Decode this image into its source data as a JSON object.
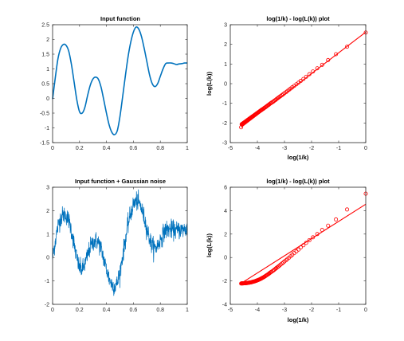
{
  "colors": {
    "series_blue": "#0072BD",
    "fit_red": "#FF0000",
    "axis": "#262626"
  },
  "chart_data": [
    {
      "type": "line",
      "title": "Input function",
      "xlabel": "",
      "ylabel": "",
      "xlim": [
        0,
        1
      ],
      "ylim": [
        -1.5,
        2.5
      ],
      "xticks": [
        0,
        0.2,
        0.4,
        0.6,
        0.8,
        1
      ],
      "yticks": [
        -1.5,
        -1,
        -0.5,
        0,
        0.5,
        1,
        1.5,
        2,
        2.5
      ],
      "xtick_labels": [
        "0",
        "0.2",
        "0.4",
        "0.6",
        "0.8",
        "1"
      ],
      "ytick_labels": [
        "-1.5",
        "-1",
        "-0.5",
        "0",
        "0.5",
        "1",
        "1.5",
        "2",
        "2.5"
      ],
      "grid": false,
      "series": [
        {
          "color": "#0072BD",
          "x": [
            0,
            0.02,
            0.04,
            0.06,
            0.08,
            0.1,
            0.12,
            0.14,
            0.16,
            0.18,
            0.2,
            0.22,
            0.24,
            0.26,
            0.28,
            0.3,
            0.32,
            0.34,
            0.36,
            0.38,
            0.4,
            0.42,
            0.44,
            0.46,
            0.48,
            0.5,
            0.52,
            0.54,
            0.56,
            0.58,
            0.6,
            0.62,
            0.64,
            0.66,
            0.68,
            0.7,
            0.72,
            0.74,
            0.76,
            0.78,
            0.8,
            0.82,
            0.84,
            0.86,
            0.88,
            0.9,
            0.92,
            0.94,
            0.96,
            0.98,
            1
          ],
          "y": [
            -0.02,
            0.7,
            1.35,
            1.7,
            1.83,
            1.8,
            1.6,
            1.15,
            0.55,
            -0.05,
            -0.45,
            -0.5,
            -0.3,
            0.1,
            0.45,
            0.66,
            0.72,
            0.65,
            0.38,
            -0.05,
            -0.5,
            -0.9,
            -1.15,
            -1.23,
            -1.1,
            -0.62,
            0.05,
            0.75,
            1.4,
            1.9,
            2.25,
            2.42,
            2.35,
            2.1,
            1.7,
            1.25,
            0.8,
            0.5,
            0.4,
            0.5,
            0.75,
            1.0,
            1.18,
            1.2,
            1.2,
            1.18,
            1.15,
            1.17,
            1.18,
            1.2,
            1.2
          ]
        }
      ]
    },
    {
      "type": "scatter",
      "title": "log(1/k) - log(L(k)) plot",
      "xlabel": "log(1/k)",
      "ylabel": "log(L(k))",
      "xlim": [
        -5,
        0
      ],
      "ylim": [
        -3,
        3
      ],
      "xticks": [
        -5,
        -4,
        -3,
        -2,
        -1,
        0
      ],
      "yticks": [
        -3,
        -2,
        -1,
        0,
        1,
        2,
        3
      ],
      "xtick_labels": [
        "-5",
        "-4",
        "-3",
        "-2",
        "-1",
        "0"
      ],
      "ytick_labels": [
        "-3",
        "-2",
        "-1",
        "0",
        "1",
        "2",
        "3"
      ],
      "grid": false,
      "fit_line": {
        "color": "#FF0000",
        "x": [
          -4.6,
          0
        ],
        "y": [
          -2.22,
          2.62
        ]
      },
      "series": [
        {
          "color": "#FF0000",
          "marker": "o",
          "x": [
            0,
            -0.69,
            -1.1,
            -1.39,
            -1.61,
            -1.79,
            -1.95,
            -2.08,
            -2.2,
            -2.3,
            -2.4,
            -2.48,
            -2.56,
            -2.64,
            -2.71,
            -2.77,
            -2.83,
            -2.89,
            -2.94,
            -3.0,
            -3.04,
            -3.09,
            -3.14,
            -3.18,
            -3.22,
            -3.26,
            -3.3,
            -3.33,
            -3.37,
            -3.4,
            -3.43,
            -3.47,
            -3.5,
            -3.53,
            -3.56,
            -3.58,
            -3.61,
            -3.64,
            -3.66,
            -3.69,
            -3.71,
            -3.74,
            -3.76,
            -3.78,
            -3.81,
            -3.83,
            -3.85,
            -3.87,
            -3.89,
            -3.91,
            -3.93,
            -3.95,
            -3.97,
            -3.99,
            -4.01,
            -4.03,
            -4.04,
            -4.06,
            -4.08,
            -4.09,
            -4.11,
            -4.13,
            -4.14,
            -4.16,
            -4.17,
            -4.19,
            -4.2,
            -4.22,
            -4.23,
            -4.25,
            -4.26,
            -4.28,
            -4.29,
            -4.3,
            -4.32,
            -4.33,
            -4.34,
            -4.36,
            -4.37,
            -4.38,
            -4.39,
            -4.41,
            -4.42,
            -4.43,
            -4.44,
            -4.45,
            -4.47,
            -4.48,
            -4.49,
            -4.5,
            -4.51,
            -4.52,
            -4.53,
            -4.54,
            -4.55,
            -4.56,
            -4.57,
            -4.58,
            -4.6
          ],
          "y": [
            2.6,
            1.88,
            1.5,
            1.2,
            0.96,
            0.78,
            0.62,
            0.48,
            0.35,
            0.24,
            0.14,
            0.05,
            -0.03,
            -0.11,
            -0.18,
            -0.25,
            -0.31,
            -0.37,
            -0.43,
            -0.48,
            -0.53,
            -0.58,
            -0.63,
            -0.67,
            -0.71,
            -0.75,
            -0.79,
            -0.83,
            -0.86,
            -0.9,
            -0.93,
            -0.96,
            -0.99,
            -1.02,
            -1.05,
            -1.08,
            -1.1,
            -1.13,
            -1.16,
            -1.18,
            -1.21,
            -1.23,
            -1.25,
            -1.28,
            -1.3,
            -1.32,
            -1.34,
            -1.36,
            -1.38,
            -1.4,
            -1.42,
            -1.44,
            -1.46,
            -1.48,
            -1.5,
            -1.52,
            -1.53,
            -1.55,
            -1.57,
            -1.58,
            -1.6,
            -1.62,
            -1.63,
            -1.65,
            -1.66,
            -1.68,
            -1.69,
            -1.71,
            -1.72,
            -1.74,
            -1.75,
            -1.77,
            -1.78,
            -1.79,
            -1.81,
            -1.82,
            -1.83,
            -1.85,
            -1.86,
            -1.87,
            -1.88,
            -1.9,
            -1.91,
            -1.92,
            -1.93,
            -1.94,
            -1.96,
            -1.97,
            -1.98,
            -1.99,
            -2.0,
            -2.01,
            -2.02,
            -2.03,
            -2.04,
            -2.05,
            -2.06,
            -2.07,
            -2.22
          ]
        }
      ]
    },
    {
      "type": "line",
      "title": "Input function + Gaussian noise",
      "xlabel": "",
      "ylabel": "",
      "xlim": [
        0,
        1
      ],
      "ylim": [
        -2,
        3
      ],
      "xticks": [
        0,
        0.2,
        0.4,
        0.6,
        0.8,
        1
      ],
      "yticks": [
        -2,
        -1,
        0,
        1,
        2,
        3
      ],
      "xtick_labels": [
        "0",
        "0.2",
        "0.4",
        "0.6",
        "0.8",
        "1"
      ],
      "ytick_labels": [
        "-2",
        "-1",
        "0",
        "1",
        "2",
        "3"
      ],
      "grid": false,
      "series": [
        {
          "color": "#0072BD",
          "noise_amplitude": 0.35,
          "x": [
            0,
            0.02,
            0.04,
            0.06,
            0.08,
            0.1,
            0.12,
            0.14,
            0.16,
            0.18,
            0.2,
            0.22,
            0.24,
            0.26,
            0.28,
            0.3,
            0.32,
            0.34,
            0.36,
            0.38,
            0.4,
            0.42,
            0.44,
            0.46,
            0.48,
            0.5,
            0.52,
            0.54,
            0.56,
            0.58,
            0.6,
            0.62,
            0.64,
            0.66,
            0.68,
            0.7,
            0.72,
            0.74,
            0.76,
            0.78,
            0.8,
            0.82,
            0.84,
            0.86,
            0.88,
            0.9,
            0.92,
            0.94,
            0.96,
            0.98,
            1
          ],
          "y": [
            -0.02,
            0.7,
            1.35,
            1.7,
            1.83,
            1.8,
            1.6,
            1.15,
            0.55,
            -0.05,
            -0.45,
            -0.5,
            -0.3,
            0.1,
            0.45,
            0.66,
            0.72,
            0.65,
            0.38,
            -0.05,
            -0.5,
            -0.9,
            -1.15,
            -1.23,
            -1.1,
            -0.62,
            0.05,
            0.75,
            1.4,
            1.9,
            2.25,
            2.42,
            2.35,
            2.1,
            1.7,
            1.25,
            0.8,
            0.5,
            0.4,
            0.5,
            0.75,
            1.0,
            1.18,
            1.2,
            1.2,
            1.18,
            1.15,
            1.17,
            1.18,
            1.2,
            1.2
          ]
        }
      ]
    },
    {
      "type": "scatter",
      "title": "log(1/k) - log(L(k)) plot",
      "xlabel": "log(1/k)",
      "ylabel": "log(L(k))",
      "xlim": [
        -5,
        0
      ],
      "ylim": [
        -4,
        6
      ],
      "xticks": [
        -5,
        -4,
        -3,
        -2,
        -1,
        0
      ],
      "yticks": [
        -4,
        -2,
        0,
        2,
        4,
        6
      ],
      "xtick_labels": [
        "-5",
        "-4",
        "-3",
        "-2",
        "-1",
        "0"
      ],
      "ytick_labels": [
        "-4",
        "-2",
        "0",
        "2",
        "4",
        "6"
      ],
      "grid": false,
      "fit_line": {
        "color": "#FF0000",
        "x": [
          -4.6,
          0
        ],
        "y": [
          -2.2,
          4.55
        ]
      },
      "series": [
        {
          "color": "#FF0000",
          "marker": "o",
          "x": [
            0,
            -0.69,
            -1.1,
            -1.39,
            -1.61,
            -1.79,
            -1.95,
            -2.08,
            -2.2,
            -2.3,
            -2.4,
            -2.48,
            -2.56,
            -2.64,
            -2.71,
            -2.77,
            -2.83,
            -2.89,
            -2.94,
            -3.0,
            -3.04,
            -3.09,
            -3.14,
            -3.18,
            -3.22,
            -3.26,
            -3.3,
            -3.33,
            -3.37,
            -3.4,
            -3.43,
            -3.47,
            -3.5,
            -3.53,
            -3.56,
            -3.58,
            -3.61,
            -3.64,
            -3.66,
            -3.69,
            -3.71,
            -3.74,
            -3.76,
            -3.78,
            -3.81,
            -3.83,
            -3.85,
            -3.87,
            -3.89,
            -3.91,
            -3.93,
            -3.95,
            -3.97,
            -3.99,
            -4.01,
            -4.03,
            -4.04,
            -4.06,
            -4.08,
            -4.09,
            -4.11,
            -4.13,
            -4.14,
            -4.16,
            -4.17,
            -4.19,
            -4.2,
            -4.22,
            -4.23,
            -4.25,
            -4.26,
            -4.28,
            -4.29,
            -4.3,
            -4.32,
            -4.33,
            -4.34,
            -4.36,
            -4.37,
            -4.38,
            -4.39,
            -4.41,
            -4.42,
            -4.43,
            -4.44,
            -4.45,
            -4.47,
            -4.48,
            -4.49,
            -4.5,
            -4.51,
            -4.52,
            -4.53,
            -4.54,
            -4.55,
            -4.56,
            -4.57,
            -4.58,
            -4.6
          ],
          "y": [
            5.45,
            4.1,
            3.25,
            2.72,
            2.35,
            2.0,
            1.72,
            1.48,
            1.25,
            1.05,
            0.86,
            0.68,
            0.52,
            0.38,
            0.24,
            0.11,
            -0.01,
            -0.12,
            -0.23,
            -0.33,
            -0.42,
            -0.51,
            -0.6,
            -0.68,
            -0.76,
            -0.83,
            -0.9,
            -0.96,
            -1.03,
            -1.09,
            -1.14,
            -1.2,
            -1.25,
            -1.3,
            -1.35,
            -1.4,
            -1.44,
            -1.48,
            -1.52,
            -1.56,
            -1.6,
            -1.64,
            -1.67,
            -1.7,
            -1.73,
            -1.76,
            -1.79,
            -1.81,
            -1.84,
            -1.86,
            -1.88,
            -1.9,
            -1.92,
            -1.94,
            -1.96,
            -1.97,
            -1.99,
            -2.0,
            -2.02,
            -2.03,
            -2.04,
            -2.05,
            -2.06,
            -2.07,
            -2.08,
            -2.09,
            -2.1,
            -2.11,
            -2.12,
            -2.12,
            -2.13,
            -2.14,
            -2.14,
            -2.15,
            -2.15,
            -2.16,
            -2.16,
            -2.17,
            -2.17,
            -2.18,
            -2.18,
            -2.18,
            -2.19,
            -2.19,
            -2.19,
            -2.19,
            -2.2,
            -2.2,
            -2.2,
            -2.2,
            -2.2,
            -2.21,
            -2.21,
            -2.21,
            -2.21,
            -2.21,
            -2.21,
            -2.21,
            -2.22
          ]
        }
      ]
    }
  ]
}
